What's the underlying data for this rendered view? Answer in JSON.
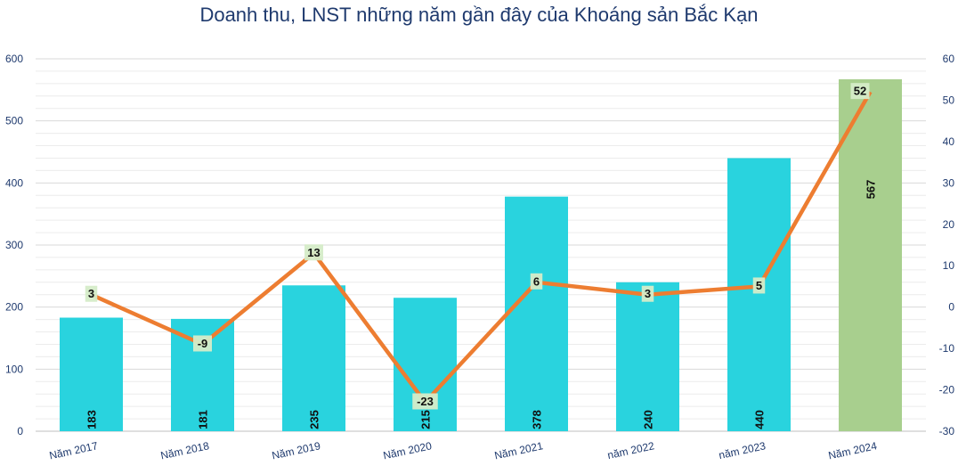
{
  "chart_data": {
    "type": "bar",
    "title": "Doanh thu, LNST những năm gần đây của Khoáng sản Bắc Kạn",
    "categories": [
      "Năm 2017",
      "Năm 2018",
      "Năm 2019",
      "Năm 2020",
      "Năm 2021",
      "năm 2022",
      "năm 2023",
      "Năm 2024"
    ],
    "series": [
      {
        "type": "bar",
        "axis": "left",
        "values": [
          183,
          181,
          235,
          215,
          378,
          240,
          440,
          567
        ]
      },
      {
        "type": "line",
        "axis": "right",
        "values": [
          3,
          -9,
          13,
          -23,
          6,
          3,
          5,
          52
        ]
      }
    ],
    "bar_value_labels": [
      "183",
      "181",
      "235",
      "215",
      "378",
      "240",
      "440",
      "567"
    ],
    "line_value_labels": [
      "3",
      "-9",
      "13",
      "-23",
      "6",
      "3",
      "5",
      "52"
    ],
    "y_left": {
      "min": 0,
      "max": 600,
      "ticks": [
        "0",
        "100",
        "200",
        "300",
        "400",
        "500",
        "600"
      ]
    },
    "y_right": {
      "min": -30,
      "max": 60,
      "ticks": [
        "-30",
        "-20",
        "-10",
        "0",
        "10",
        "20",
        "30",
        "40",
        "50",
        "60"
      ]
    },
    "grid": true,
    "legend": "none",
    "colors": {
      "bar": "#29d3de",
      "bar_highlight": "#a8cf8e",
      "line": "#ed7d31",
      "label_bg": "#d5ecc8",
      "text": "#1f3a6e"
    }
  }
}
